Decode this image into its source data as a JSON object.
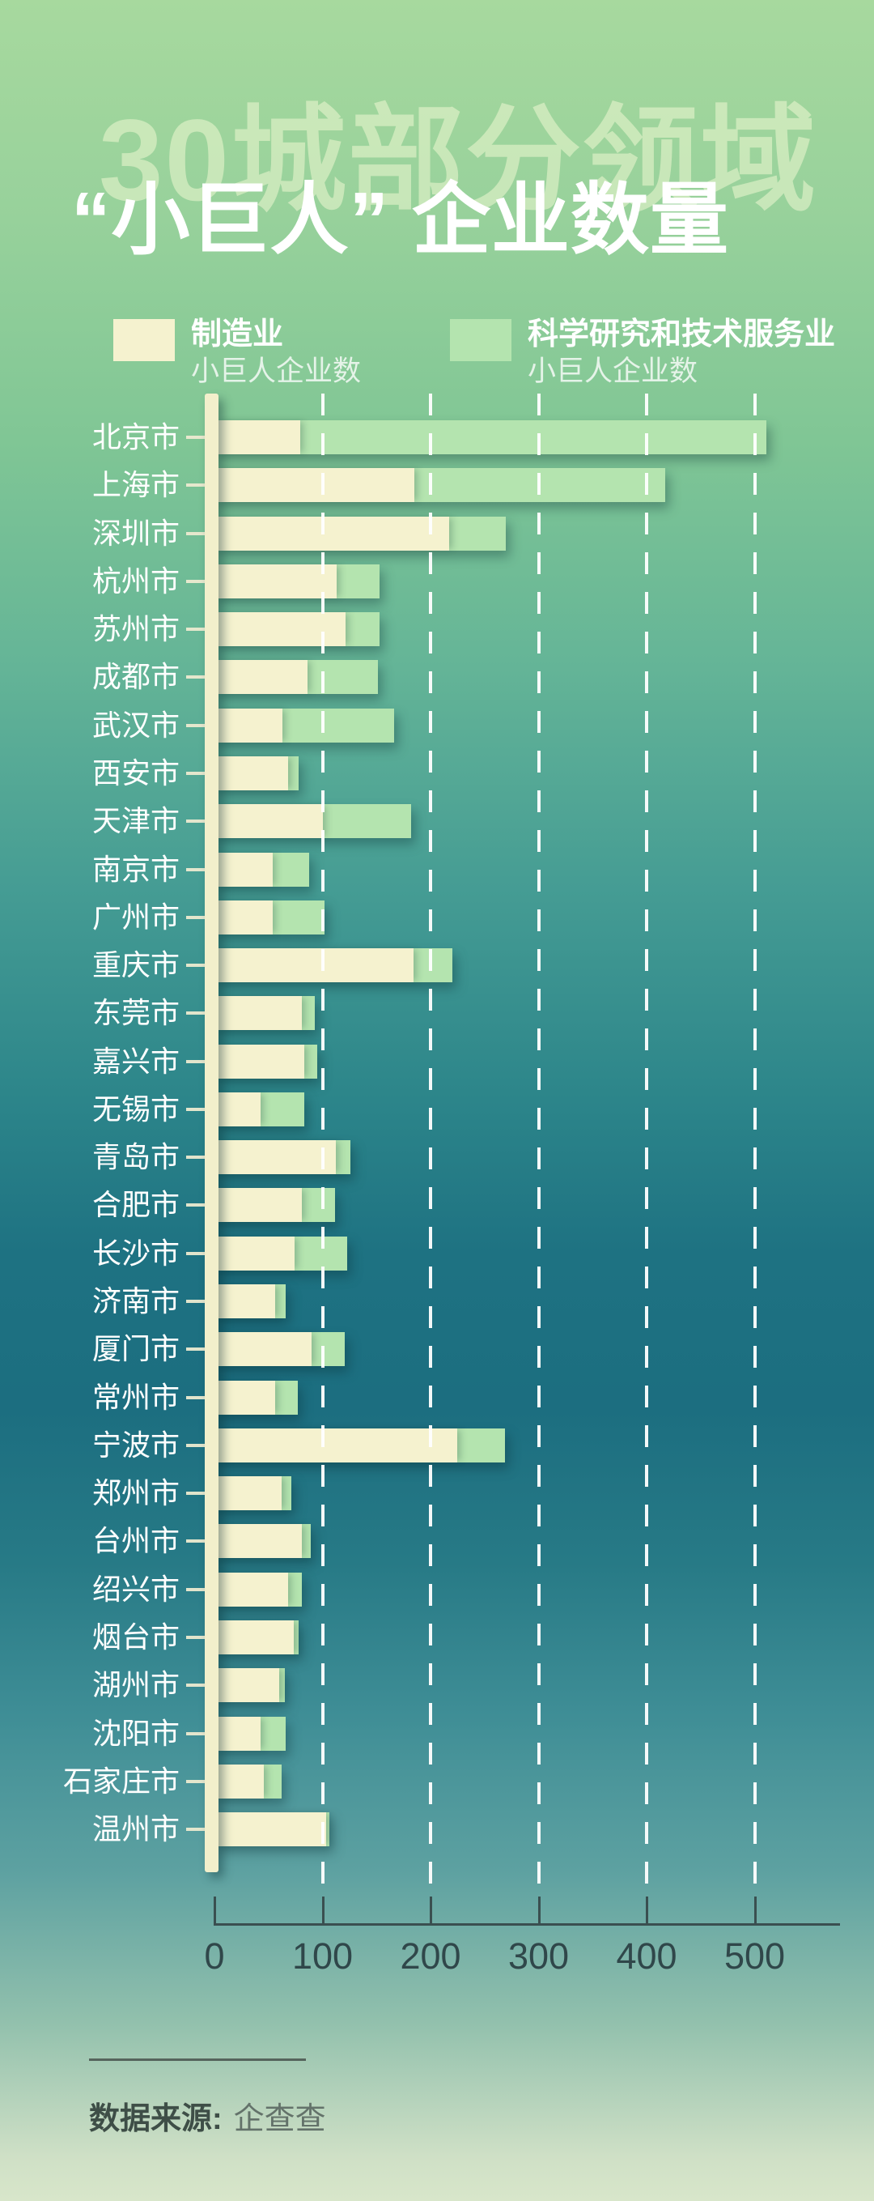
{
  "title": {
    "watermark": "30城部分领域",
    "main": "“小巨人” 企业数量"
  },
  "legend": {
    "items": [
      {
        "title": "制造业",
        "subtitle": "小巨人企业数",
        "color": "#f5f2cf"
      },
      {
        "title": "科学研究和技术服务业",
        "subtitle": "小巨人企业数",
        "color": "#b4e4af"
      }
    ]
  },
  "chart_data": {
    "type": "bar",
    "orientation": "horizontal",
    "stacked": true,
    "grid": "dashed-white-vertical",
    "legend_position": "top",
    "xlim": [
      0,
      575
    ],
    "x_ticks": [
      0,
      100,
      200,
      300,
      400,
      500
    ],
    "categories": [
      "北京市",
      "上海市",
      "深圳市",
      "杭州市",
      "苏州市",
      "成都市",
      "武汉市",
      "西安市",
      "天津市",
      "南京市",
      "广州市",
      "重庆市",
      "东莞市",
      "嘉兴市",
      "无锡市",
      "青岛市",
      "合肥市",
      "长沙市",
      "济南市",
      "厦门市",
      "常州市",
      "宁波市",
      "郑州市",
      "台州市",
      "绍兴市",
      "烟台市",
      "湖州市",
      "沈阳市",
      "石家庄市",
      "温州市"
    ],
    "series": [
      {
        "name": "制造业小巨人企业数",
        "color": "#f5f2cf",
        "values": [
          79,
          185,
          217,
          113,
          121,
          86,
          63,
          68,
          100,
          54,
          54,
          184,
          81,
          83,
          43,
          112,
          81,
          74,
          56,
          90,
          56,
          225,
          62,
          81,
          68,
          73,
          60,
          43,
          46,
          103
        ]
      },
      {
        "name": "科学研究和技术服务业小巨人企业数",
        "color": "#b4e4af",
        "values": [
          432,
          232,
          53,
          40,
          32,
          65,
          103,
          10,
          82,
          34,
          48,
          36,
          12,
          12,
          40,
          14,
          31,
          49,
          10,
          31,
          21,
          44,
          9,
          8,
          13,
          5,
          5,
          23,
          16,
          3
        ]
      }
    ]
  },
  "footer": {
    "source_label": "数据来源:",
    "source_value": "企查查"
  }
}
